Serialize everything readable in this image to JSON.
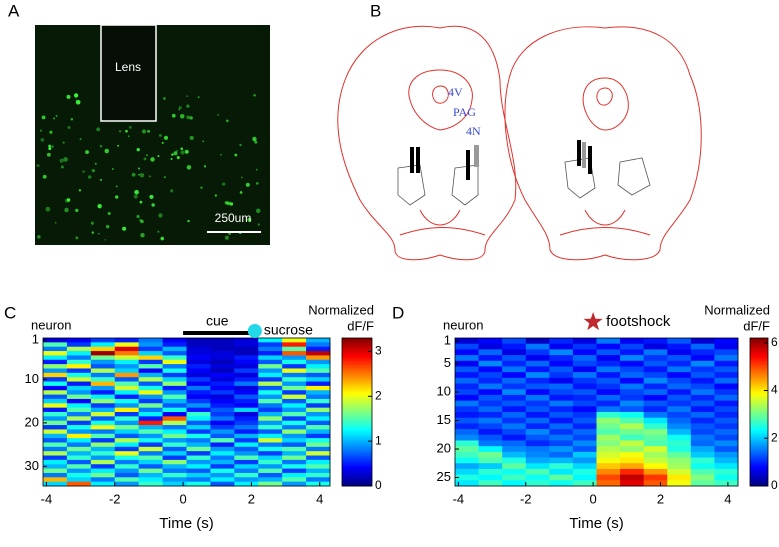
{
  "panels": {
    "A": {
      "letter": "A",
      "lens": "Lens",
      "scale": "250um"
    },
    "B": {
      "letter": "B",
      "labels": [
        "4V",
        "PAG",
        "4N"
      ]
    }
  },
  "chart_data": [
    {
      "type": "heatmap",
      "panel": "C",
      "ylabel": "neuron",
      "xlabel": "Time (s)",
      "colorbar_label": "Normalized",
      "colorbar_unit": "dF/F",
      "colormap": "jet",
      "xlim": [
        -4.1,
        4.3
      ],
      "xticks": [
        -4,
        -2,
        0,
        2,
        4
      ],
      "ylim": [
        0.5,
        34.5
      ],
      "yticks": [
        1,
        10,
        20,
        30
      ],
      "clim": [
        0,
        3.3
      ],
      "cticks": [
        0,
        1,
        2,
        3
      ],
      "annotations": [
        {
          "text": "cue",
          "kind": "bar",
          "x": [
            0,
            2
          ],
          "color": "#000000"
        },
        {
          "text": "sucrose",
          "kind": "circle",
          "x": 2.1,
          "color": "#22d8e8"
        }
      ],
      "values": [
        [
          0.3,
          0.4,
          0.6,
          0.5,
          0.8,
          0.4,
          0.2,
          0.2,
          0.3,
          1.2,
          2.0,
          1.0
        ],
        [
          1.5,
          0.6,
          1.2,
          2.0,
          0.9,
          0.5,
          0.2,
          0.2,
          0.3,
          0.6,
          2.8,
          0.8
        ],
        [
          0.8,
          1.8,
          2.2,
          3.0,
          0.6,
          1.0,
          0.3,
          0.2,
          0.2,
          0.8,
          1.5,
          0.5
        ],
        [
          2.0,
          1.2,
          3.2,
          2.5,
          1.1,
          0.7,
          0.3,
          0.3,
          0.2,
          0.5,
          2.6,
          3.1
        ],
        [
          1.2,
          0.8,
          1.6,
          1.9,
          2.2,
          1.4,
          0.4,
          0.3,
          0.5,
          1.1,
          0.9,
          2.4
        ],
        [
          0.5,
          1.4,
          0.9,
          1.2,
          0.6,
          2.0,
          0.3,
          0.2,
          0.4,
          0.7,
          1.3,
          0.9
        ],
        [
          1.7,
          2.1,
          0.7,
          0.9,
          1.5,
          0.8,
          0.5,
          0.3,
          0.3,
          1.6,
          0.6,
          1.2
        ],
        [
          0.9,
          0.6,
          1.8,
          1.1,
          0.4,
          1.3,
          0.4,
          0.2,
          0.6,
          0.9,
          2.0,
          1.5
        ],
        [
          2.2,
          1.3,
          0.8,
          2.4,
          1.0,
          0.6,
          0.3,
          0.4,
          0.3,
          1.2,
          0.8,
          0.7
        ],
        [
          0.6,
          1.9,
          1.4,
          0.7,
          1.8,
          1.1,
          0.6,
          0.3,
          0.5,
          0.6,
          1.4,
          1.1
        ],
        [
          1.3,
          0.5,
          2.3,
          1.5,
          0.7,
          1.7,
          0.4,
          0.5,
          0.8,
          1.8,
          0.9,
          0.5
        ],
        [
          0.4,
          1.1,
          0.9,
          1.9,
          1.3,
          0.5,
          0.8,
          0.4,
          0.3,
          0.7,
          1.6,
          2.1
        ],
        [
          1.8,
          0.9,
          0.5,
          1.2,
          2.0,
          0.9,
          0.5,
          0.6,
          0.4,
          1.3,
          0.6,
          1.0
        ],
        [
          0.7,
          1.6,
          1.2,
          0.5,
          0.9,
          1.5,
          0.4,
          0.3,
          0.7,
          0.9,
          1.9,
          0.8
        ],
        [
          1.1,
          0.4,
          1.7,
          1.3,
          0.6,
          1.0,
          0.6,
          0.4,
          0.5,
          1.5,
          0.7,
          1.4
        ],
        [
          2.0,
          1.2,
          0.6,
          0.9,
          1.6,
          0.7,
          0.9,
          0.5,
          0.4,
          0.8,
          1.2,
          0.6
        ],
        [
          0.5,
          1.5,
          1.0,
          2.1,
          0.8,
          1.3,
          0.5,
          0.7,
          1.1,
          0.6,
          0.9,
          1.7
        ],
        [
          1.4,
          0.8,
          1.9,
          0.6,
          1.2,
          0.4,
          1.4,
          0.6,
          0.3,
          1.0,
          1.5,
          0.9
        ],
        [
          0.9,
          1.8,
          0.7,
          1.4,
          0.5,
          2.6,
          1.2,
          0.8,
          0.5,
          1.7,
          0.6,
          1.2
        ],
        [
          1.6,
          0.6,
          1.3,
          0.9,
          2.8,
          1.8,
          0.7,
          0.4,
          0.6,
          0.9,
          1.3,
          0.7
        ],
        [
          0.6,
          1.3,
          2.0,
          1.6,
          1.0,
          0.8,
          1.1,
          0.6,
          0.8,
          1.4,
          0.8,
          1.5
        ],
        [
          1.9,
          0.9,
          0.8,
          1.1,
          1.5,
          1.2,
          0.6,
          0.9,
          0.5,
          0.7,
          1.7,
          1.0
        ],
        [
          1.0,
          2.1,
          1.5,
          0.7,
          0.9,
          1.6,
          1.3,
          0.7,
          1.0,
          1.2,
          0.9,
          0.6
        ],
        [
          0.7,
          1.2,
          0.6,
          1.8,
          1.3,
          0.9,
          0.8,
          1.5,
          0.6,
          1.9,
          1.1,
          1.3
        ],
        [
          1.5,
          0.8,
          1.7,
          1.2,
          0.6,
          1.4,
          1.0,
          0.5,
          1.2,
          0.8,
          0.7,
          1.6
        ],
        [
          0.8,
          1.6,
          1.0,
          0.6,
          1.9,
          0.7,
          1.6,
          0.9,
          0.7,
          1.3,
          1.5,
          0.8
        ],
        [
          1.8,
          1.0,
          1.4,
          2.0,
          0.8,
          1.1,
          0.6,
          1.2,
          0.9,
          0.6,
          1.0,
          1.9
        ],
        [
          0.6,
          1.4,
          0.9,
          1.3,
          1.5,
          0.6,
          1.4,
          0.8,
          1.5,
          1.1,
          1.6,
          0.7
        ],
        [
          1.2,
          0.7,
          1.8,
          0.8,
          1.1,
          1.7,
          0.9,
          1.0,
          0.6,
          1.4,
          0.8,
          1.2
        ],
        [
          1.0,
          1.5,
          0.6,
          1.4,
          0.7,
          1.0,
          1.2,
          0.6,
          1.1,
          0.9,
          1.3,
          1.5
        ],
        [
          1.6,
          0.9,
          1.2,
          0.9,
          1.6,
          0.8,
          0.7,
          1.3,
          0.8,
          1.5,
          0.6,
          1.0
        ],
        [
          0.8,
          1.3,
          1.6,
          0.7,
          1.0,
          1.4,
          1.1,
          0.9,
          1.4,
          0.7,
          1.2,
          1.4
        ],
        [
          2.3,
          1.1,
          0.8,
          1.5,
          1.2,
          0.9,
          0.8,
          1.2,
          0.9,
          1.0,
          1.5,
          0.8
        ],
        [
          1.1,
          2.6,
          1.2,
          0.9,
          1.4,
          1.1,
          1.3,
          0.7,
          1.2,
          1.6,
          0.9,
          1.3
        ]
      ]
    },
    {
      "type": "heatmap",
      "panel": "D",
      "ylabel": "neuron",
      "xlabel": "Time (s)",
      "colorbar_label": "Normalized",
      "colorbar_unit": "dF/F",
      "colormap": "jet",
      "xlim": [
        -4.1,
        4.3
      ],
      "xticks": [
        -4,
        -2,
        0,
        2,
        4
      ],
      "ylim": [
        0.5,
        26.5
      ],
      "yticks": [
        1,
        5,
        10,
        15,
        20,
        25
      ],
      "clim": [
        0,
        6.2
      ],
      "cticks": [
        0,
        2,
        4,
        6
      ],
      "annotations": [
        {
          "text": "footshock",
          "kind": "star",
          "x": 0,
          "color": "#c0282e"
        }
      ],
      "values": [
        [
          0.5,
          0.8,
          1.2,
          0.4,
          1.0,
          0.6,
          1.5,
          0.7,
          0.9,
          1.3,
          0.5,
          0.8
        ],
        [
          1.2,
          0.6,
          0.9,
          1.5,
          0.7,
          1.1,
          0.8,
          1.2,
          0.6,
          0.9,
          1.4,
          0.7
        ],
        [
          0.8,
          1.4,
          0.6,
          1.1,
          1.6,
          0.8,
          1.3,
          0.9,
          1.5,
          0.7,
          1.0,
          1.2
        ],
        [
          1.5,
          0.9,
          1.3,
          0.7,
          1.0,
          1.4,
          0.7,
          1.6,
          1.1,
          1.3,
          0.8,
          1.5
        ],
        [
          0.7,
          1.6,
          1.0,
          1.4,
          0.8,
          1.2,
          1.0,
          0.8,
          1.3,
          1.0,
          1.6,
          0.9
        ],
        [
          1.3,
          0.8,
          1.5,
          0.9,
          1.3,
          0.7,
          1.5,
          1.2,
          0.9,
          1.5,
          1.1,
          1.3
        ],
        [
          0.9,
          1.2,
          0.8,
          1.6,
          1.1,
          1.5,
          0.9,
          1.4,
          1.2,
          0.8,
          1.3,
          1.0
        ],
        [
          1.4,
          1.0,
          1.4,
          1.0,
          0.7,
          1.1,
          1.3,
          0.8,
          1.6,
          1.2,
          0.9,
          1.4
        ],
        [
          1.0,
          1.5,
          1.1,
          1.3,
          1.4,
          0.9,
          1.1,
          1.5,
          1.0,
          1.4,
          1.2,
          0.8
        ],
        [
          1.2,
          0.8,
          1.6,
          0.8,
          1.2,
          1.3,
          0.8,
          1.2,
          1.4,
          0.9,
          1.5,
          1.1
        ],
        [
          0.8,
          1.3,
          1.0,
          1.5,
          0.9,
          1.0,
          1.4,
          1.1,
          0.8,
          1.3,
          1.0,
          1.4
        ],
        [
          1.5,
          1.1,
          1.3,
          1.1,
          1.5,
          1.2,
          1.0,
          1.6,
          1.3,
          1.1,
          1.3,
          0.9
        ],
        [
          1.1,
          1.4,
          0.9,
          1.3,
          1.0,
          0.8,
          1.5,
          1.3,
          1.0,
          1.5,
          0.9,
          1.2
        ],
        [
          0.9,
          1.0,
          1.4,
          0.9,
          1.3,
          1.1,
          2.6,
          2.4,
          1.5,
          1.2,
          1.4,
          1.0
        ],
        [
          1.3,
          1.5,
          1.1,
          1.4,
          0.9,
          1.3,
          3.2,
          2.8,
          2.2,
          1.4,
          1.0,
          1.3
        ],
        [
          1.0,
          1.2,
          1.5,
          1.0,
          1.4,
          1.0,
          3.0,
          3.4,
          2.6,
          1.6,
          1.3,
          1.1
        ],
        [
          1.4,
          0.9,
          1.2,
          1.6,
          1.1,
          1.4,
          2.8,
          3.0,
          3.1,
          1.9,
          1.2,
          1.4
        ],
        [
          1.6,
          1.3,
          0.9,
          1.3,
          1.5,
          1.2,
          3.3,
          2.7,
          2.9,
          2.4,
          1.5,
          1.2
        ],
        [
          2.6,
          1.5,
          1.4,
          1.0,
          1.2,
          1.6,
          3.1,
          3.5,
          2.8,
          2.6,
          1.4,
          1.6
        ],
        [
          2.9,
          2.3,
          1.6,
          1.5,
          1.7,
          1.3,
          3.4,
          3.2,
          3.6,
          2.5,
          1.8,
          1.3
        ],
        [
          2.7,
          3.0,
          1.9,
          1.6,
          1.4,
          2.0,
          3.6,
          3.8,
          3.3,
          2.9,
          2.0,
          1.7
        ],
        [
          2.4,
          2.8,
          2.5,
          1.8,
          1.9,
          1.7,
          3.8,
          4.0,
          3.5,
          3.2,
          2.6,
          1.9
        ],
        [
          1.8,
          2.0,
          2.9,
          2.2,
          2.6,
          2.1,
          4.2,
          4.4,
          3.9,
          3.3,
          2.4,
          2.2
        ],
        [
          2.1,
          2.6,
          2.4,
          2.8,
          2.2,
          2.5,
          4.6,
          5.2,
          4.5,
          3.6,
          2.8,
          2.6
        ],
        [
          2.5,
          2.3,
          2.7,
          2.4,
          2.9,
          2.3,
          5.0,
          5.8,
          5.1,
          4.0,
          3.1,
          2.4
        ],
        [
          2.2,
          2.7,
          2.3,
          2.6,
          2.4,
          2.7,
          4.8,
          5.6,
          4.9,
          3.8,
          2.9,
          2.7
        ]
      ]
    }
  ]
}
